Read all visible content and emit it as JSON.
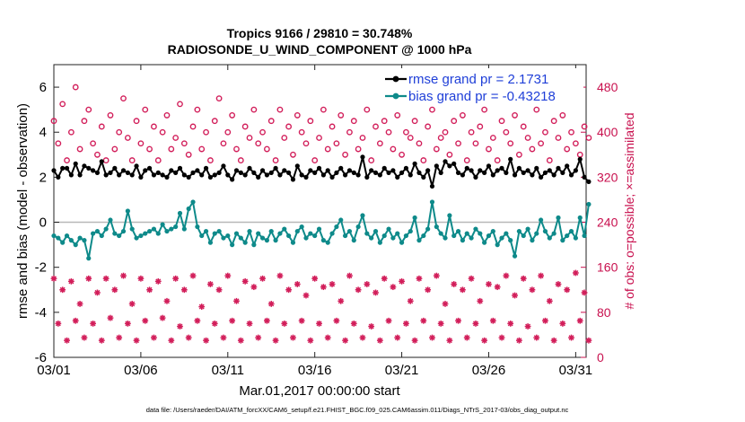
{
  "chart_data": {
    "type": "line",
    "title_line1": "Tropics 9166 / 29810 = 30.748%",
    "title_line2": "RADIOSONDE_U_WIND_COMPONENT @ 1000 hPa",
    "xlabel": "Mar.01,2017 00:00:00 start",
    "ylabel_left": "rmse and bias (model - observation)",
    "ylabel_right": "# of obs: o=possible; ×=assimilated",
    "x_range_days": [
      1,
      31.6
    ],
    "y_left_range": [
      -6,
      7
    ],
    "y_right_range": [
      0,
      520
    ],
    "x_ticks": [
      {
        "day": 1,
        "label": "03/01"
      },
      {
        "day": 6,
        "label": "03/06"
      },
      {
        "day": 11,
        "label": "03/11"
      },
      {
        "day": 16,
        "label": "03/16"
      },
      {
        "day": 21,
        "label": "03/21"
      },
      {
        "day": 26,
        "label": "03/26"
      },
      {
        "day": 31,
        "label": "03/31"
      }
    ],
    "y_left_ticks": [
      {
        "value": -6,
        "label": "-6"
      },
      {
        "value": -4,
        "label": "-4"
      },
      {
        "value": -2,
        "label": "-2"
      },
      {
        "value": 0,
        "label": "0"
      },
      {
        "value": 2,
        "label": "2"
      },
      {
        "value": 4,
        "label": "4"
      },
      {
        "value": 6,
        "label": "6"
      }
    ],
    "y_right_ticks": [
      {
        "value": 0,
        "label": "0"
      },
      {
        "value": 80,
        "label": "80"
      },
      {
        "value": 160,
        "label": "160"
      },
      {
        "value": 240,
        "label": "240"
      },
      {
        "value": 320,
        "label": "320"
      },
      {
        "value": 400,
        "label": "400"
      },
      {
        "value": 480,
        "label": "480"
      }
    ],
    "legend": [
      {
        "name": "rmse grand pr = 2.1731",
        "color": "#000000"
      },
      {
        "name": "bias grand pr = -0.43218",
        "color": "#0e8a8a"
      }
    ],
    "series_meta": {
      "n_points": 124,
      "x_start_day": 1,
      "step_days": 0.25
    },
    "series": [
      {
        "name": "rmse",
        "color": "#000000",
        "values": [
          2.3,
          2.0,
          2.4,
          2.4,
          2.1,
          2.6,
          2.1,
          2.5,
          2.4,
          2.3,
          2.2,
          2.7,
          2.1,
          2.2,
          2.4,
          2.1,
          2.3,
          2.2,
          2.1,
          2.5,
          2.0,
          2.3,
          2.4,
          2.1,
          2.2,
          2.1,
          2.0,
          2.3,
          2.2,
          2.4,
          2.1,
          2.0,
          2.2,
          2.3,
          2.1,
          2.4,
          2.0,
          2.1,
          2.2,
          2.5,
          2.1,
          1.9,
          2.3,
          2.2,
          2.1,
          2.4,
          2.2,
          2.0,
          2.3,
          2.1,
          2.2,
          2.4,
          2.1,
          2.3,
          2.2,
          1.9,
          2.5,
          2.1,
          2.0,
          2.3,
          2.2,
          2.4,
          2.1,
          2.3,
          2.0,
          2.2,
          2.4,
          2.1,
          2.3,
          2.2,
          2.1,
          2.9,
          2.0,
          2.3,
          2.2,
          2.1,
          2.4,
          2.2,
          2.3,
          2.0,
          2.2,
          2.4,
          2.1,
          2.6,
          2.2,
          2.0,
          2.3,
          1.6,
          2.5,
          2.2,
          2.7,
          2.5,
          2.6,
          2.2,
          2.1,
          2.4,
          2.3,
          2.0,
          2.3,
          2.2,
          2.5,
          2.1,
          2.3,
          2.4,
          2.2,
          2.8,
          2.1,
          2.4,
          2.2,
          2.3,
          2.1,
          2.4,
          2.0,
          2.2,
          2.3,
          2.1,
          2.4,
          2.2,
          2.5,
          2.1,
          2.3,
          2.8,
          2.0,
          1.8
        ]
      },
      {
        "name": "bias",
        "color": "#0e8a8a",
        "values": [
          -0.6,
          -0.7,
          -0.9,
          -0.6,
          -0.8,
          -1.0,
          -0.7,
          -0.8,
          -1.6,
          -0.5,
          -0.4,
          -0.6,
          -0.3,
          0.1,
          -0.5,
          -0.6,
          -0.4,
          0.5,
          -0.3,
          -0.7,
          -0.6,
          -0.5,
          -0.4,
          -0.3,
          -0.5,
          -0.1,
          -0.4,
          -0.3,
          -0.2,
          0.4,
          -0.3,
          0.6,
          0.9,
          -0.2,
          -0.6,
          -0.4,
          -0.9,
          -0.5,
          -0.4,
          -0.7,
          -0.6,
          -1.0,
          -0.5,
          -0.7,
          -0.9,
          -0.4,
          -1.0,
          -0.5,
          -0.7,
          -0.8,
          -0.4,
          -0.8,
          -0.5,
          -0.3,
          -0.6,
          -0.9,
          -0.4,
          -0.2,
          -0.7,
          -0.5,
          -0.6,
          -0.3,
          -0.8,
          -0.9,
          -0.5,
          -0.2,
          0.1,
          -0.6,
          -0.4,
          -0.8,
          -0.2,
          0.3,
          -0.5,
          -0.7,
          -0.4,
          -0.9,
          -0.6,
          -0.3,
          -0.7,
          -0.5,
          -0.9,
          -0.6,
          -0.4,
          0.2,
          -0.8,
          -0.6,
          -0.3,
          0.9,
          -0.2,
          -0.5,
          -0.7,
          0.3,
          -0.6,
          -0.4,
          -0.8,
          -0.5,
          -0.7,
          -0.3,
          -0.5,
          -0.9,
          -0.6,
          -0.4,
          -1.0,
          -0.7,
          -0.5,
          -0.8,
          -1.5,
          -0.4,
          -0.6,
          -0.3,
          -0.8,
          -0.5,
          0.1,
          -0.4,
          -0.7,
          -0.5,
          0.2,
          -0.8,
          -0.6,
          -0.4,
          -0.7,
          0.2,
          -0.6,
          0.8
        ]
      },
      {
        "name": "possible obs",
        "color": "#d21e5a",
        "marker": "circle",
        "values": [
          420,
          380,
          450,
          350,
          400,
          480,
          370,
          420,
          440,
          380,
          360,
          410,
          350,
          430,
          370,
          400,
          460,
          390,
          350,
          420,
          380,
          440,
          370,
          410,
          350,
          400,
          430,
          370,
          390,
          450,
          380,
          360,
          410,
          440,
          370,
          400,
          350,
          420,
          460,
          380,
          400,
          430,
          370,
          350,
          410,
          390,
          440,
          380,
          400,
          370,
          420,
          350,
          440,
          390,
          410,
          360,
          430,
          400,
          380,
          420,
          350,
          390,
          440,
          370,
          410,
          380,
          430,
          360,
          400,
          420,
          370,
          390,
          440,
          350,
          410,
          380,
          420,
          400,
          370,
          430,
          360,
          400,
          390,
          420,
          380,
          350,
          410,
          440,
          370,
          390,
          400,
          360,
          420,
          380,
          430,
          350,
          400,
          380,
          410,
          440,
          370,
          390,
          350,
          420,
          400,
          380,
          430,
          360,
          410,
          390,
          370,
          440,
          380,
          400,
          350,
          420,
          390,
          430,
          370,
          400,
          380,
          360,
          410,
          390
        ]
      },
      {
        "name": "assimilated obs",
        "color": "#d21e5a",
        "marker": "asterisk",
        "values": [
          140,
          60,
          120,
          30,
          135,
          65,
          95,
          35,
          140,
          60,
          115,
          30,
          140,
          70,
          120,
          35,
          145,
          60,
          95,
          30,
          140,
          65,
          120,
          35,
          135,
          70,
          100,
          30,
          140,
          55,
          120,
          35,
          145,
          65,
          90,
          30,
          130,
          60,
          120,
          35,
          145,
          65,
          100,
          30,
          135,
          60,
          125,
          35,
          140,
          65,
          95,
          30,
          145,
          60,
          120,
          35,
          130,
          65,
          110,
          30,
          140,
          60,
          125,
          35,
          130,
          65,
          100,
          30,
          145,
          60,
          120,
          35,
          130,
          55,
          115,
          30,
          140,
          65,
          125,
          35,
          135,
          60,
          100,
          30,
          140,
          65,
          120,
          35,
          145,
          60,
          95,
          30,
          130,
          65,
          120,
          35,
          140,
          60,
          100,
          30,
          130,
          65,
          125,
          35,
          145,
          60,
          110,
          30,
          140,
          55,
          120,
          35,
          145,
          65,
          100,
          30,
          130,
          60,
          120,
          35,
          150,
          65,
          115,
          30
        ]
      }
    ],
    "datafile": "data file: /Users/raeder/DAI/ATM_forcXX/CAM6_setup/f.e21.FHIST_BGC.f09_025.CAM6assim.011/Diags_NTrS_2017-03/obs_diag_output.nc"
  }
}
